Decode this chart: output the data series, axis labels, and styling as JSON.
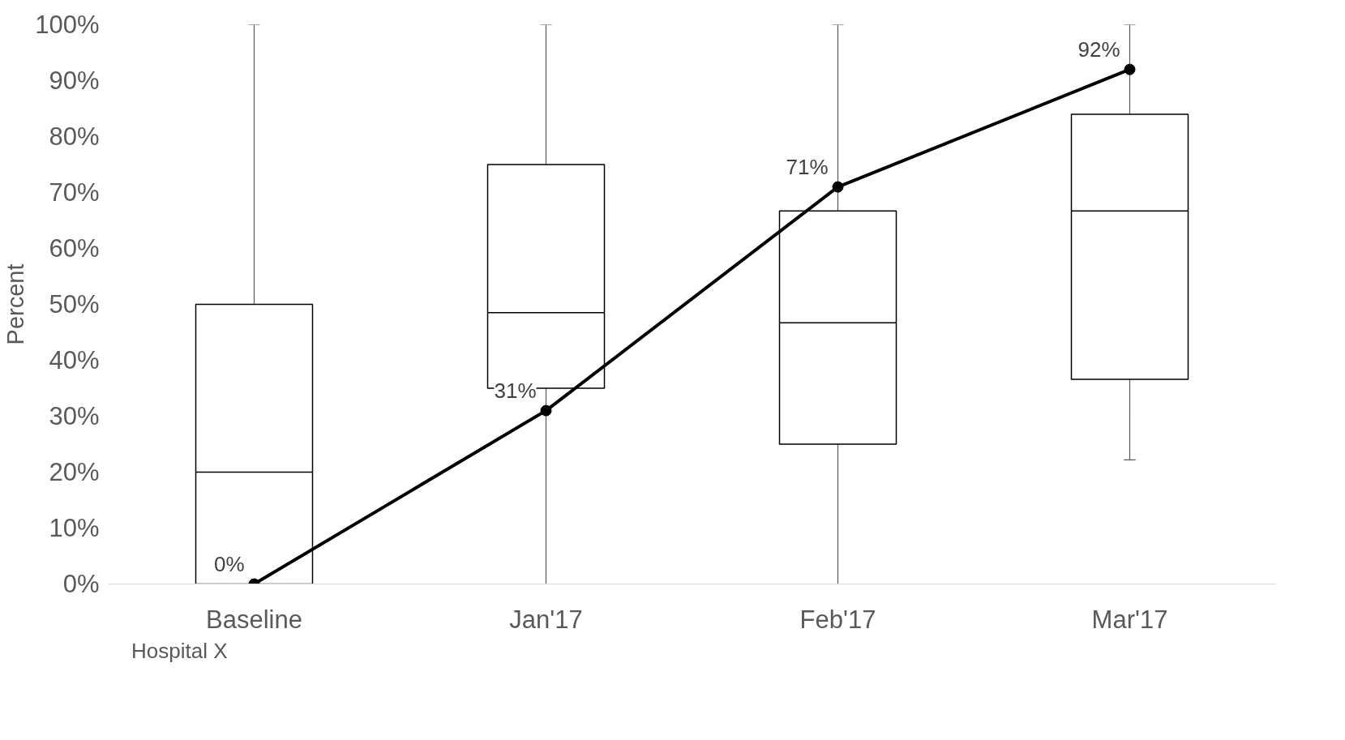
{
  "chart_data": {
    "type": "box",
    "ylabel": "Percent",
    "categories": [
      "Baseline",
      "Jan'17",
      "Feb'17",
      "Mar'17"
    ],
    "boxes": [
      {
        "low": 0,
        "q1": 0,
        "median": 20,
        "q3": 50,
        "high": 100
      },
      {
        "low": 0,
        "q1": 35,
        "median": 48.5,
        "q3": 75,
        "high": 100
      },
      {
        "low": 0,
        "q1": 25,
        "median": 46.7,
        "q3": 66.7,
        "high": 100
      },
      {
        "low": 22.2,
        "q1": 36.6,
        "median": 66.7,
        "q3": 84,
        "high": 100
      }
    ],
    "series": [
      {
        "type": "line",
        "name": "Hospital X",
        "color": "#000000",
        "values": [
          0,
          31,
          71,
          92
        ],
        "value_labels": [
          "0%",
          "31%",
          "71%",
          "92%"
        ]
      }
    ],
    "marker": "circle",
    "legend": "bottom left",
    "grid": false,
    "ylim": [
      0,
      100
    ],
    "yticks": [
      {
        "value": 0,
        "label": "0%"
      },
      {
        "value": 10,
        "label": "10%"
      },
      {
        "value": 20,
        "label": "20%"
      },
      {
        "value": 30,
        "label": "30%"
      },
      {
        "value": 40,
        "label": "40%"
      },
      {
        "value": 50,
        "label": "50%"
      },
      {
        "value": 60,
        "label": "60%"
      },
      {
        "value": 70,
        "label": "70%"
      },
      {
        "value": 80,
        "label": "80%"
      },
      {
        "value": 90,
        "label": "90%"
      },
      {
        "value": 100,
        "label": "100%"
      }
    ]
  }
}
